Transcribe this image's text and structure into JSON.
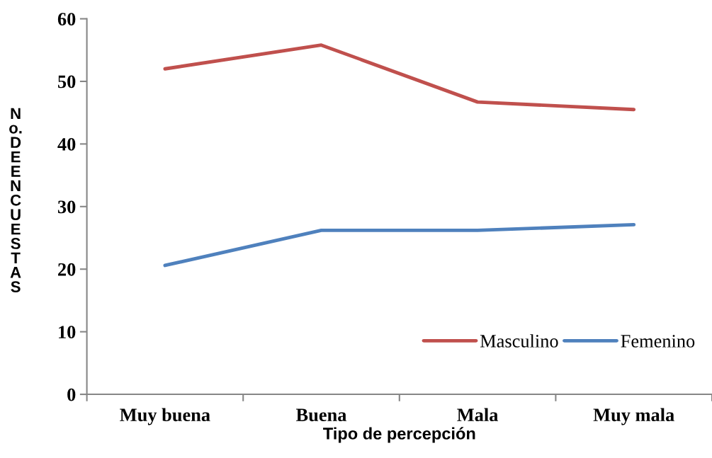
{
  "chart_data": {
    "type": "line",
    "xlabel": "Tipo de percepción",
    "ylabel": "No. DE ENCUESTAS",
    "categories": [
      "Muy buena",
      "Buena",
      "Mala",
      "Muy mala"
    ],
    "series": [
      {
        "name": "Masculino",
        "color": "#c0504d",
        "values": [
          52,
          55.8,
          46.7,
          45.5
        ]
      },
      {
        "name": "Femenino",
        "color": "#4f81bd",
        "values": [
          20.6,
          26.2,
          26.2,
          27.1
        ]
      }
    ],
    "ylim": [
      0,
      60
    ],
    "yticks": [
      0,
      10,
      20,
      30,
      40,
      50,
      60
    ],
    "grid": false,
    "legend": "bottom right",
    "marker": "none",
    "line_style": "solid"
  }
}
